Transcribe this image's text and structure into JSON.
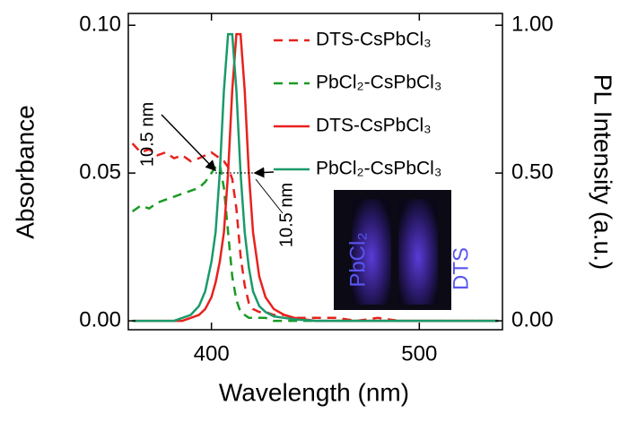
{
  "chart_data": {
    "type": "line",
    "xlabel": "Wavelength (nm)",
    "ylabel": "Absorbance",
    "y2label": "PL Intensity (a.u.)",
    "x": [
      362,
      366,
      370,
      374,
      378,
      382,
      386,
      390,
      394,
      397,
      400,
      402,
      404,
      406,
      408,
      410,
      412,
      414,
      416,
      418,
      420,
      423,
      426,
      430,
      435,
      440,
      450,
      460,
      470,
      480,
      490,
      500,
      510,
      520,
      530,
      538
    ],
    "series": [
      {
        "name": "DTS-CsPbCl₃",
        "color": "#e8211d",
        "dash": true,
        "values": [
          0.06,
          0.057,
          0.058,
          0.056,
          0.057,
          0.055,
          0.056,
          0.054,
          0.055,
          0.056,
          0.057,
          0.056,
          0.055,
          0.054,
          0.052,
          0.048,
          0.038,
          0.022,
          0.012,
          0.006,
          0.004,
          0.003,
          0.003,
          0.002,
          0.002,
          0.001,
          0.001,
          0.001,
          0.0,
          0.001,
          0.0,
          0.0,
          0.0,
          0.0,
          0.0,
          0.0
        ]
      },
      {
        "name": "PbCl₂-CsPbCl₃",
        "color": "#1a9a24",
        "dash": true,
        "values": [
          0.037,
          0.039,
          0.038,
          0.04,
          0.041,
          0.042,
          0.043,
          0.044,
          0.045,
          0.047,
          0.05,
          0.052,
          0.053,
          0.045,
          0.03,
          0.015,
          0.007,
          0.003,
          0.002,
          0.001,
          0.001,
          0.001,
          0.001,
          0.0,
          0.0,
          0.0,
          0.0,
          0.0,
          0.0,
          0.0,
          0.0,
          0.0,
          0.0,
          0.0,
          0.0,
          0.0
        ]
      },
      {
        "name": "DTS-CsPbCl₃",
        "color": "#e8211d",
        "dash": false,
        "axis": "y2",
        "values": [
          0,
          0,
          0,
          0,
          0,
          0,
          0,
          0.01,
          0.02,
          0.04,
          0.08,
          0.13,
          0.2,
          0.3,
          0.5,
          0.78,
          0.97,
          0.97,
          0.78,
          0.5,
          0.3,
          0.15,
          0.08,
          0.04,
          0.02,
          0.01,
          0,
          0,
          0,
          0,
          0,
          0,
          0,
          0,
          0,
          0
        ]
      },
      {
        "name": "PbCl₂-CsPbCl₃",
        "color": "#1a9a6a",
        "dash": false,
        "axis": "y2",
        "values": [
          0,
          0,
          0,
          0,
          0,
          0,
          0.01,
          0.02,
          0.05,
          0.1,
          0.2,
          0.3,
          0.5,
          0.78,
          0.97,
          0.97,
          0.78,
          0.5,
          0.3,
          0.18,
          0.1,
          0.05,
          0.03,
          0.015,
          0.01,
          0.005,
          0,
          0,
          0,
          0,
          0,
          0,
          0,
          0,
          0,
          0
        ]
      }
    ],
    "xlim": [
      360,
      540
    ],
    "xticks": [
      400,
      500
    ],
    "ylim": [
      -0.003,
      0.104
    ],
    "yticks": [
      {
        "value": 0,
        "label": "0.00"
      },
      {
        "value": 0.05,
        "label": "0.05"
      },
      {
        "value": 0.1,
        "label": "0.10"
      }
    ],
    "y2lim": [
      -0.03,
      1.04
    ],
    "y2ticks": [
      {
        "value": 0,
        "label": "0.00"
      },
      {
        "value": 0.5,
        "label": "0.50"
      },
      {
        "value": 1,
        "label": "1.00"
      }
    ],
    "annotations": [
      "10.5 nm",
      "10.5 nm"
    ],
    "inset_labels": [
      "PbCl₂",
      "DTS"
    ],
    "legend": "upper right"
  }
}
